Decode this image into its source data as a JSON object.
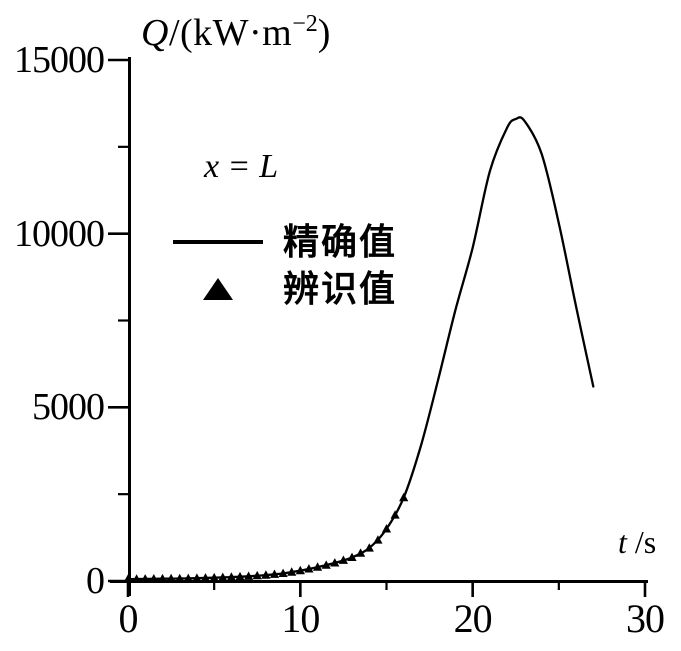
{
  "figure": {
    "background": "#ffffff",
    "ink_color": "#000000"
  },
  "y_axis": {
    "label_var": "Q",
    "label_unit_open": "/(kW·m",
    "label_exp": "−2",
    "label_unit_close": ")",
    "tick_labels": [
      "0",
      "5000",
      "10000",
      "15000"
    ]
  },
  "x_axis": {
    "label_var": "t",
    "label_unit": "/s",
    "tick_labels": [
      "0",
      "10",
      "20",
      "30"
    ]
  },
  "annotation": {
    "var": "x",
    "eq": "=",
    "val": "L"
  },
  "legend": {
    "items": [
      {
        "label": "精确值",
        "marker": "line"
      },
      {
        "label": "辨识值",
        "marker": "triangle"
      }
    ]
  },
  "chart_data": {
    "type": "line",
    "title": "",
    "xlabel": "t/s",
    "ylabel": "Q/(kW·m⁻²)",
    "annotation": "x = L",
    "xlim": [
      0,
      30
    ],
    "ylim": [
      0,
      15000
    ],
    "x_ticks": [
      0,
      10,
      20,
      30
    ],
    "x_minor_ticks": [
      5,
      15,
      25
    ],
    "y_ticks": [
      0,
      5000,
      10000,
      15000
    ],
    "y_minor_ticks": [
      2500,
      7500,
      12500
    ],
    "grid": false,
    "legend_position": "upper-left-inside",
    "series": [
      {
        "name": "精确值",
        "type": "line",
        "x": [
          0,
          1,
          2,
          3,
          4,
          5,
          6,
          7,
          8,
          9,
          10,
          11,
          12,
          13,
          14,
          15,
          16,
          17,
          18,
          19,
          20,
          21,
          22,
          22.5,
          23,
          24,
          25,
          26,
          27
        ],
        "y": [
          55,
          60,
          65,
          72,
          82,
          95,
          112,
          136,
          170,
          218,
          300,
          400,
          520,
          680,
          950,
          1500,
          2400,
          3900,
          5800,
          7800,
          9600,
          11800,
          13050,
          13300,
          13250,
          12300,
          10300,
          7900,
          5600
        ]
      },
      {
        "name": "辨识值",
        "type": "scatter",
        "marker": "triangle",
        "x": [
          0,
          0.5,
          1,
          1.5,
          2,
          2.5,
          3,
          3.5,
          4,
          4.5,
          5,
          5.5,
          6,
          6.5,
          7,
          7.5,
          8,
          8.5,
          9,
          9.5,
          10,
          10.5,
          11,
          11.5,
          12,
          12.5,
          13,
          13.5,
          14,
          14.5,
          15,
          15.5,
          16
        ],
        "y": [
          55,
          57,
          60,
          62,
          65,
          68,
          72,
          76,
          82,
          88,
          95,
          103,
          112,
          123,
          136,
          152,
          170,
          192,
          218,
          255,
          300,
          348,
          400,
          455,
          520,
          595,
          680,
          800,
          950,
          1180,
          1500,
          1900,
          2400
        ]
      }
    ]
  }
}
